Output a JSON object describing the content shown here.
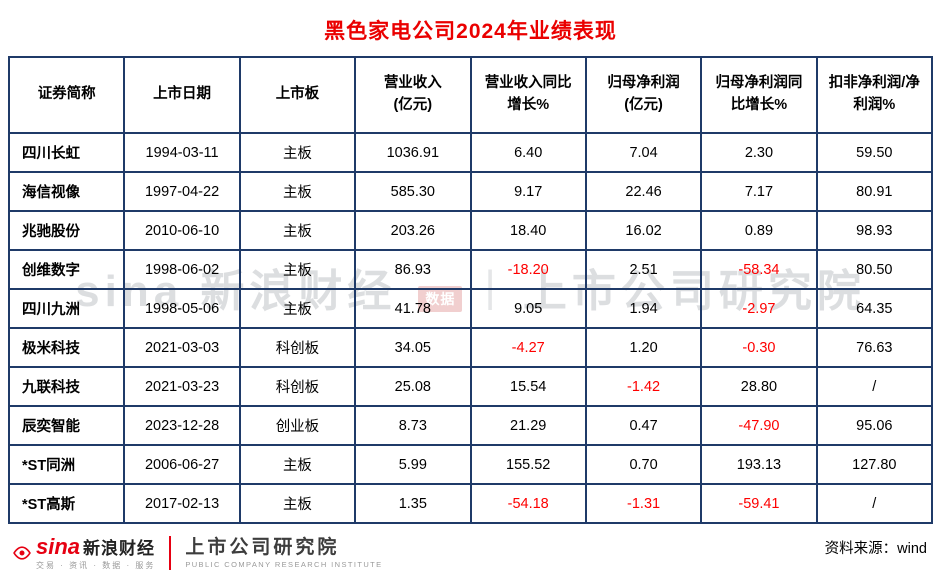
{
  "chart_data": {
    "type": "table",
    "title": "黑色家电公司2024年业绩表现",
    "columns": [
      "证券简称",
      "上市日期",
      "上市板",
      "营业收入\n(亿元)",
      "营业收入同比\n增长%",
      "归母净利润\n(亿元)",
      "归母净利润同\n比增长%",
      "扣非净利润/净\n利润%"
    ],
    "rows": [
      [
        "四川长虹",
        "1994-03-11",
        "主板",
        "1036.91",
        "6.40",
        "7.04",
        "2.30",
        "59.50"
      ],
      [
        "海信视像",
        "1997-04-22",
        "主板",
        "585.30",
        "9.17",
        "22.46",
        "7.17",
        "80.91"
      ],
      [
        "兆驰股份",
        "2010-06-10",
        "主板",
        "203.26",
        "18.40",
        "16.02",
        "0.89",
        "98.93"
      ],
      [
        "创维数字",
        "1998-06-02",
        "主板",
        "86.93",
        "-18.20",
        "2.51",
        "-58.34",
        "80.50"
      ],
      [
        "四川九洲",
        "1998-05-06",
        "主板",
        "41.78",
        "9.05",
        "1.94",
        "-2.97",
        "64.35"
      ],
      [
        "极米科技",
        "2021-03-03",
        "科创板",
        "34.05",
        "-4.27",
        "1.20",
        "-0.30",
        "76.63"
      ],
      [
        "九联科技",
        "2021-03-23",
        "科创板",
        "25.08",
        "15.54",
        "-1.42",
        "28.80",
        "/"
      ],
      [
        "辰奕智能",
        "2023-12-28",
        "创业板",
        "8.73",
        "21.29",
        "0.47",
        "-47.90",
        "95.06"
      ],
      [
        "*ST同洲",
        "2006-06-27",
        "主板",
        "5.99",
        "155.52",
        "0.70",
        "193.13",
        "127.80"
      ],
      [
        "*ST高斯",
        "2017-02-13",
        "主板",
        "1.35",
        "-54.18",
        "-1.31",
        "-59.41",
        "/"
      ]
    ],
    "layout_hints": {
      "grid": "on",
      "negative_values_in_red": true,
      "first_column_left_aligned": true
    }
  },
  "colors": {
    "title": "#ea0000",
    "negative": "#fe0000",
    "border": "#1f3a68",
    "brand_red": "#e60012",
    "text": "#000000"
  },
  "watermark": {
    "left": "sina 新浪财经",
    "badge": "数据",
    "divider": "|",
    "right": "上市公司研究院"
  },
  "footer": {
    "sina_logo": "sina",
    "sina_brand": "新浪财经",
    "sina_tagline": "交易 · 资讯 · 数据 · 服务",
    "institute": "上市公司研究院",
    "institute_en": "PUBLIC COMPANY RESEARCH INSTITUTE",
    "source": "资料来源：wind"
  }
}
